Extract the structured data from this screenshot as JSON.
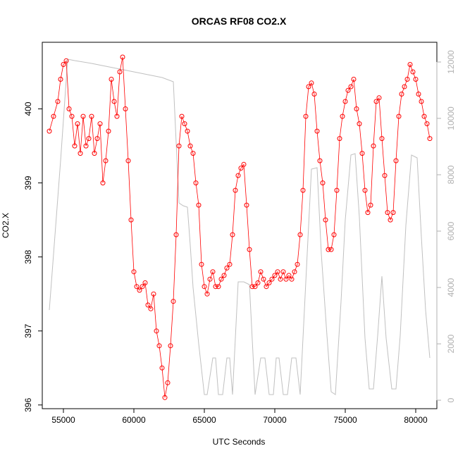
{
  "chart_data": {
    "type": "scatter",
    "title": "ORCAS RF08 CO2.X",
    "xlabel": "UTC Seconds",
    "ylabel": "CO2.X",
    "xlim": [
      53500,
      81500
    ],
    "ylim": [
      395.95,
      400.9
    ],
    "y2lim": [
      -300,
      12700
    ],
    "x_ticks": [
      55000,
      60000,
      65000,
      70000,
      75000,
      80000
    ],
    "y_ticks": [
      396,
      397,
      398,
      399,
      400
    ],
    "y2_ticks": [
      0,
      2000,
      4000,
      6000,
      8000,
      10000,
      12000
    ],
    "grid": false,
    "colors": {
      "co2": "#ff0000",
      "altitude": "#c0c0c0"
    },
    "series": [
      {
        "marker": "open-circle",
        "x": [
          54000,
          54300,
          54600,
          54800,
          55000,
          55200,
          55400,
          55600,
          55800,
          56000,
          56200,
          56400,
          56600,
          56800,
          57000,
          57200,
          57400,
          57600,
          57800,
          58000,
          58200,
          58400,
          58600,
          58800,
          59000,
          59200,
          59400,
          59600,
          59800,
          60000,
          60200,
          60400,
          60600,
          60800,
          61000,
          61200,
          61400,
          61600,
          61800,
          62000,
          62200,
          62400,
          62600,
          62800,
          63000,
          63200,
          63400,
          63600,
          63800,
          64000,
          64200,
          64400,
          64600,
          64800,
          65000,
          65200,
          65400,
          65600,
          65800,
          66000,
          66200,
          66400,
          66600,
          66800,
          67000,
          67200,
          67400,
          67600,
          67800,
          68000,
          68200,
          68400,
          68600,
          68800,
          69000,
          69200,
          69400,
          69600,
          69800,
          70000,
          70200,
          70400,
          70600,
          70800,
          71000,
          71200,
          71400,
          71600,
          71800,
          72000,
          72200,
          72400,
          72600,
          72800,
          73000,
          73200,
          73400,
          73600,
          73800,
          74000,
          74200,
          74400,
          74600,
          74800,
          75000,
          75200,
          75400,
          75600,
          75800,
          76000,
          76200,
          76400,
          76600,
          76800,
          77000,
          77200,
          77400,
          77600,
          77800,
          78000,
          78200,
          78400,
          78600,
          78800,
          79000,
          79200,
          79400,
          79600,
          79800,
          80000,
          80200,
          80400,
          80600,
          80800,
          81000
        ],
        "y": [
          399.7,
          399.9,
          400.1,
          400.4,
          400.6,
          400.65,
          400.0,
          399.9,
          399.5,
          399.8,
          399.4,
          399.9,
          399.5,
          399.6,
          399.9,
          399.4,
          399.6,
          399.8,
          399.0,
          399.3,
          399.7,
          400.4,
          400.1,
          399.9,
          400.5,
          400.7,
          400.0,
          399.3,
          398.5,
          397.8,
          397.6,
          397.55,
          397.6,
          397.65,
          397.35,
          397.3,
          397.5,
          397.0,
          396.8,
          396.5,
          396.1,
          396.3,
          396.8,
          397.4,
          398.3,
          399.5,
          399.9,
          399.8,
          399.7,
          399.5,
          399.4,
          399.0,
          398.7,
          397.9,
          397.6,
          397.5,
          397.7,
          397.8,
          397.6,
          397.6,
          397.7,
          397.75,
          397.85,
          397.9,
          398.3,
          398.9,
          399.1,
          399.2,
          399.25,
          398.7,
          398.1,
          397.6,
          397.6,
          397.65,
          397.8,
          397.7,
          397.6,
          397.65,
          397.7,
          397.75,
          397.8,
          397.7,
          397.8,
          397.7,
          397.75,
          397.7,
          397.8,
          397.9,
          398.3,
          398.9,
          399.9,
          400.3,
          400.35,
          400.2,
          399.7,
          399.3,
          399.0,
          398.5,
          398.1,
          398.1,
          398.3,
          398.9,
          399.6,
          399.9,
          400.1,
          400.25,
          400.3,
          400.4,
          400.0,
          399.8,
          399.4,
          398.9,
          398.6,
          398.7,
          399.5,
          400.1,
          400.15,
          399.6,
          399.1,
          398.6,
          398.5,
          398.6,
          399.3,
          399.9,
          400.2,
          400.3,
          400.4,
          400.6,
          400.5,
          400.4,
          400.2,
          400.1,
          399.9,
          399.8,
          399.6
        ]
      },
      {
        "axis": "right",
        "line": true,
        "x": [
          54000,
          54800,
          55300,
          55800,
          57000,
          58000,
          59000,
          60000,
          61000,
          62000,
          62800,
          63200,
          63500,
          63800,
          64000,
          64200,
          64600,
          65000,
          65200,
          65600,
          65800,
          66000,
          66300,
          66600,
          66800,
          67000,
          67400,
          67800,
          68200,
          68600,
          69000,
          69300,
          69600,
          69900,
          70100,
          70300,
          70600,
          70900,
          71200,
          71500,
          71800,
          72200,
          72600,
          73000,
          73300,
          73700,
          74000,
          74300,
          74700,
          75000,
          75400,
          75700,
          76000,
          76400,
          76700,
          77000,
          77300,
          77600,
          77900,
          78300,
          78600,
          78900,
          79300,
          79700,
          80100,
          80400,
          80700,
          81000
        ],
        "y": [
          3200,
          8500,
          12100,
          12050,
          11950,
          11850,
          11750,
          11650,
          11550,
          11450,
          11300,
          7000,
          6900,
          6850,
          5500,
          4000,
          2000,
          200,
          200,
          1500,
          1500,
          200,
          200,
          1500,
          1500,
          200,
          4200,
          4200,
          4100,
          200,
          1500,
          1500,
          200,
          200,
          1500,
          1500,
          200,
          200,
          1500,
          1500,
          200,
          4200,
          8200,
          8250,
          5200,
          2300,
          300,
          200,
          3500,
          6400,
          8700,
          8750,
          6500,
          2200,
          400,
          400,
          2300,
          4400,
          2200,
          400,
          400,
          2300,
          6200,
          8700,
          8600,
          5800,
          3200,
          1500
        ]
      }
    ]
  }
}
